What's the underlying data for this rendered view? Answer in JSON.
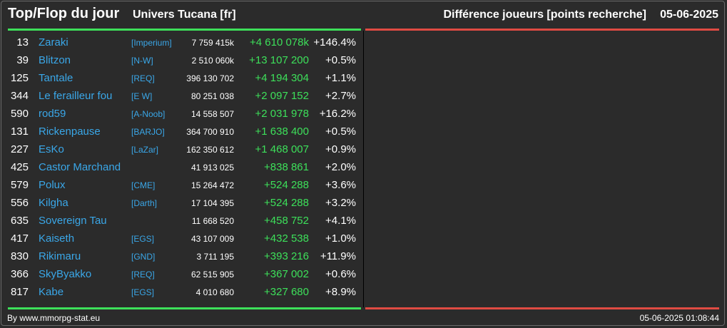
{
  "header": {
    "title": "Top/Flop du jour",
    "universe": "Univers Tucana [fr]",
    "subtitle": "Différence joueurs [points recherche]",
    "date": "05-06-2025"
  },
  "colors": {
    "background": "#2b2b2b",
    "gain": "#3de05a",
    "loss": "#e04b43",
    "link": "#3aa7e8"
  },
  "rows": [
    {
      "rank": "13",
      "name": "Zaraki",
      "ally": "[Imperium]",
      "points": "7 759 415k",
      "diff": "+4 610 078k",
      "pct": "+146.4%"
    },
    {
      "rank": "39",
      "name": "Blitzon",
      "ally": "[N-W]",
      "points": "2 510 060k",
      "diff": "+13 107 200",
      "pct": "+0.5%"
    },
    {
      "rank": "125",
      "name": "Tantale",
      "ally": "[REQ]",
      "points": "396 130 702",
      "diff": "+4 194 304",
      "pct": "+1.1%"
    },
    {
      "rank": "344",
      "name": "Le ferailleur fou",
      "ally": "[E W]",
      "points": "80 251 038",
      "diff": "+2 097 152",
      "pct": "+2.7%"
    },
    {
      "rank": "590",
      "name": "rod59",
      "ally": "[A-Noob]",
      "points": "14 558 507",
      "diff": "+2 031 978",
      "pct": "+16.2%"
    },
    {
      "rank": "131",
      "name": "Rickenpause",
      "ally": "[BARJO]",
      "points": "364 700 910",
      "diff": "+1 638 400",
      "pct": "+0.5%"
    },
    {
      "rank": "227",
      "name": "EsKo",
      "ally": "[LaZar]",
      "points": "162 350 612",
      "diff": "+1 468 007",
      "pct": "+0.9%"
    },
    {
      "rank": "425",
      "name": "Castor Marchand",
      "ally": "",
      "points": "41 913 025",
      "diff": "+838 861",
      "pct": "+2.0%"
    },
    {
      "rank": "579",
      "name": "Polux",
      "ally": "[CME]",
      "points": "15 264 472",
      "diff": "+524 288",
      "pct": "+3.6%"
    },
    {
      "rank": "556",
      "name": "Kilgha",
      "ally": "[Darth]",
      "points": "17 104 395",
      "diff": "+524 288",
      "pct": "+3.2%"
    },
    {
      "rank": "635",
      "name": "Sovereign Tau",
      "ally": "",
      "points": "11 668 520",
      "diff": "+458 752",
      "pct": "+4.1%"
    },
    {
      "rank": "417",
      "name": "Kaiseth",
      "ally": "[EGS]",
      "points": "43 107 009",
      "diff": "+432 538",
      "pct": "+1.0%"
    },
    {
      "rank": "830",
      "name": "Rikimaru",
      "ally": "[GND]",
      "points": "3 711 195",
      "diff": "+393 216",
      "pct": "+11.9%"
    },
    {
      "rank": "366",
      "name": "SkyByakko",
      "ally": "[REQ]",
      "points": "62 515 905",
      "diff": "+367 002",
      "pct": "+0.6%"
    },
    {
      "rank": "817",
      "name": "Kabe",
      "ally": "[EGS]",
      "points": "4 010 680",
      "diff": "+327 680",
      "pct": "+8.9%"
    }
  ],
  "footer": {
    "credit": "By www.mmorpg-stat.eu",
    "timestamp": "05-06-2025 01:08:44"
  }
}
